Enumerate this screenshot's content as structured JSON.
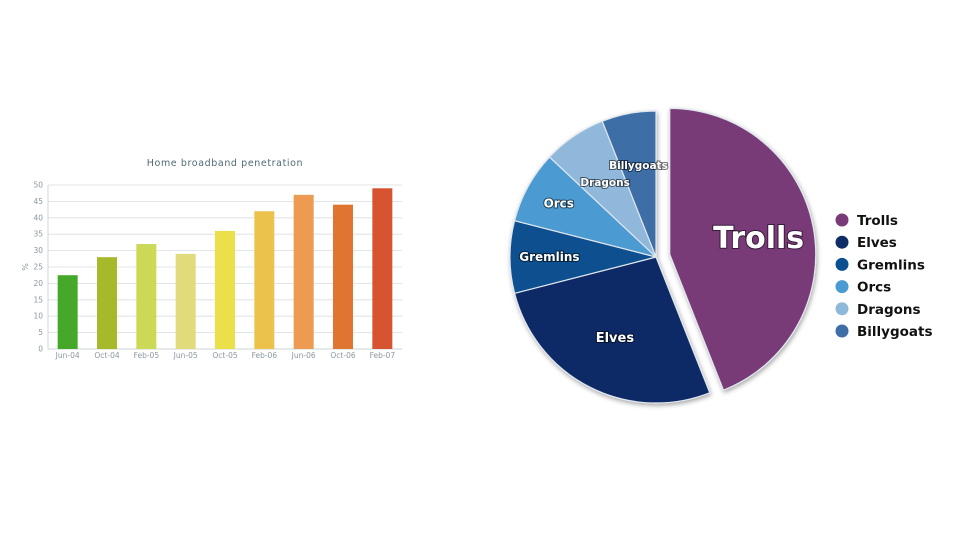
{
  "chart_data": [
    {
      "type": "bar",
      "title": "Home broadband penetration",
      "ylabel": "%",
      "xlabel": "",
      "categories": [
        "Jun-04",
        "Oct-04",
        "Feb-05",
        "Jun-05",
        "Oct-05",
        "Feb-06",
        "Jun-06",
        "Oct-06",
        "Feb-07"
      ],
      "values": [
        22.5,
        28,
        32,
        29,
        36,
        42,
        47,
        44,
        49
      ],
      "colors": [
        "#45a82b",
        "#a6b92a",
        "#cbd957",
        "#e2db7c",
        "#ebdf4a",
        "#ecc24a",
        "#ed9a52",
        "#e07532",
        "#d65530"
      ],
      "ylim": [
        0,
        50
      ],
      "yticks": [
        0,
        5,
        10,
        15,
        20,
        25,
        30,
        35,
        40,
        45,
        50
      ],
      "grid": true,
      "legend": "none"
    },
    {
      "type": "pie",
      "labels": [
        "Trolls",
        "Elves",
        "Gremlins",
        "Orcs",
        "Dragons",
        "Billygoats"
      ],
      "values": [
        44,
        27,
        8,
        8,
        7,
        6
      ],
      "colors": [
        "#793a78",
        "#0f2c66",
        "#0a4f8f",
        "#4b9ad1",
        "#8fb8da",
        "#3e6ea6"
      ],
      "exploded": "Trolls",
      "legend": "right"
    }
  ]
}
